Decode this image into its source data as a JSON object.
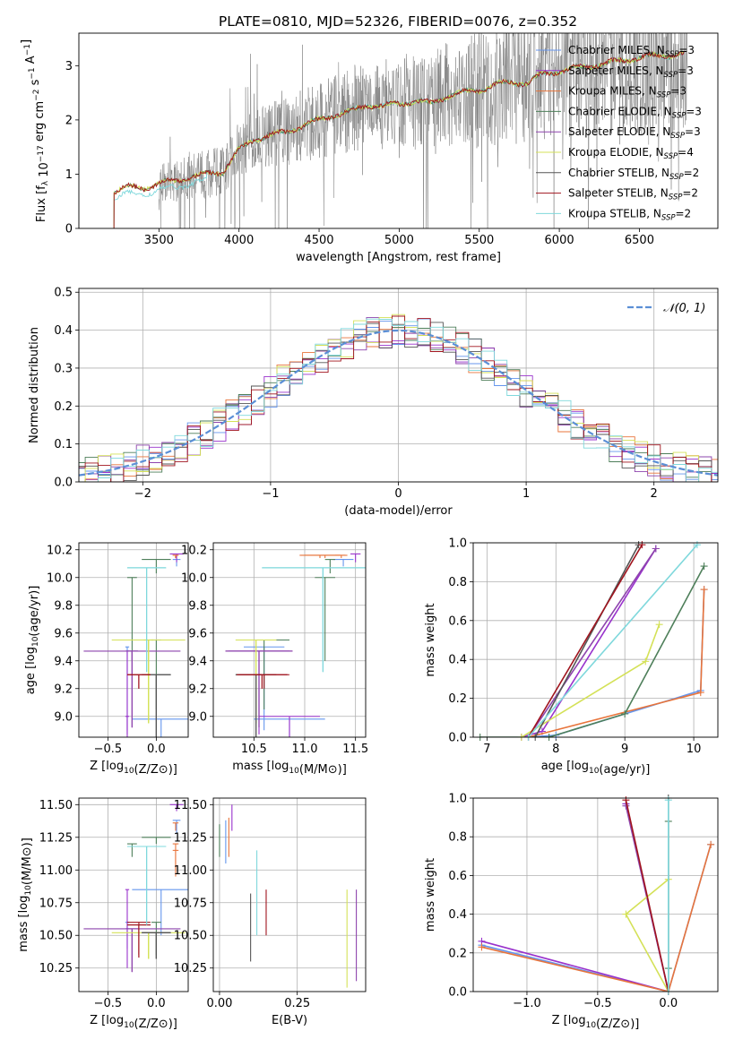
{
  "figure_title": "PLATE=0810, MJD=52326, FIBERID=0076, z=0.352",
  "colors": {
    "chabrier_miles": "#6495ed",
    "salpeter_miles": "#9932cc",
    "kroupa_miles": "#e8743b",
    "chabrier_elodie": "#4e7f5a",
    "salpeter_elodie": "#8e44ad",
    "kroupa_elodie": "#d4e157",
    "chabrier_stelib": "#555555",
    "salpeter_stelib": "#a0141e",
    "kroupa_stelib": "#7fd8dc",
    "normal": "#5b8fd6",
    "grid": "#b0b0b0",
    "observed": "#808080"
  },
  "chart_data": [
    {
      "id": "spectrum",
      "type": "line",
      "xlabel": "wavelength [Angstrom, rest frame]",
      "ylabel": "Flux [f_λ 10^-17 erg cm^-2 s^-1 A^-1]",
      "xlim": [
        3000,
        6990
      ],
      "ylim": [
        0,
        3.6
      ],
      "xticks": [
        3500,
        4000,
        4500,
        5000,
        5500,
        6000,
        6500
      ],
      "yticks": [
        0,
        1,
        2,
        3
      ],
      "legend_position": "top-right",
      "grid": false,
      "legend": [
        {
          "key": "chabrier_miles",
          "label": "Chabrier MILES, N",
          "sub": "SSP",
          "suffix": "=3"
        },
        {
          "key": "salpeter_miles",
          "label": "Salpeter MILES, N",
          "sub": "SSP",
          "suffix": "=3"
        },
        {
          "key": "kroupa_miles",
          "label": "Kroupa MILES, N",
          "sub": "SSP",
          "suffix": "=3"
        },
        {
          "key": "chabrier_elodie",
          "label": "Chabrier ELODIE, N",
          "sub": "SSP",
          "suffix": "=3"
        },
        {
          "key": "salpeter_elodie",
          "label": "Salpeter ELODIE, N",
          "sub": "SSP",
          "suffix": "=3"
        },
        {
          "key": "kroupa_elodie",
          "label": "Kroupa ELODIE, N",
          "sub": "SSP",
          "suffix": "=4"
        },
        {
          "key": "chabrier_stelib",
          "label": "Chabrier STELIB, N",
          "sub": "SSP",
          "suffix": "=2"
        },
        {
          "key": "salpeter_stelib",
          "label": "Salpeter STELIB, N",
          "sub": "SSP",
          "suffix": "=2"
        },
        {
          "key": "kroupa_stelib",
          "label": "Kroupa STELIB, N",
          "sub": "SSP",
          "suffix": "=2"
        }
      ],
      "model_continuum": {
        "x": [
          3220,
          3300,
          3400,
          3500,
          3600,
          3700,
          3800,
          3900,
          4000,
          4100,
          4200,
          4300,
          4400,
          4500,
          4600,
          4700,
          4800,
          4900,
          5000,
          5100,
          5200,
          5300,
          5400,
          5500,
          5600,
          5700,
          5800,
          5900,
          6000,
          6100,
          6200,
          6300,
          6400,
          6500,
          6600,
          6700,
          6800
        ],
        "y": [
          0.68,
          0.76,
          0.75,
          0.82,
          0.88,
          0.95,
          1.0,
          1.05,
          1.45,
          1.65,
          1.72,
          1.78,
          1.9,
          2.0,
          2.1,
          2.15,
          2.28,
          2.25,
          2.3,
          2.35,
          2.3,
          2.45,
          2.5,
          2.55,
          2.65,
          2.7,
          2.68,
          2.85,
          2.9,
          2.95,
          3.0,
          3.05,
          3.1,
          3.15,
          3.18,
          3.2,
          3.22
        ]
      },
      "observed_range": [
        3500,
        6800
      ]
    },
    {
      "id": "residuals",
      "type": "bar",
      "xlabel": "(data-model)/error",
      "ylabel": "Normed distribution",
      "xlim": [
        -2.5,
        2.5
      ],
      "ylim": [
        0,
        0.51
      ],
      "xticks": [
        -2,
        -1,
        0,
        1,
        2
      ],
      "yticks": [
        0.0,
        0.1,
        0.2,
        0.3,
        0.4,
        0.5
      ],
      "grid": true,
      "legend_position": "top-right",
      "curve_label": "𝒩(0, 1)",
      "bin_width": 0.1
    },
    {
      "id": "age_vs_Z",
      "type": "scatter",
      "xlabel": "Z [log10(Z/Z⊙)]",
      "ylabel": "age [log10(age/yr)]",
      "xlim": [
        -0.8,
        0.33
      ],
      "ylim": [
        8.85,
        10.25
      ],
      "xticks": [
        -0.5,
        0.0
      ],
      "yticks": [
        9.0,
        9.2,
        9.4,
        9.6,
        9.8,
        10.0,
        10.2
      ],
      "grid": true
    },
    {
      "id": "age_vs_mass",
      "type": "scatter",
      "xlabel": "mass [log10(M/M⊙)]",
      "xlim": [
        10.1,
        11.6
      ],
      "ylim": [
        8.85,
        10.25
      ],
      "xticks": [
        10.5,
        11.0,
        11.5
      ],
      "yticks": [
        9.0,
        9.2,
        9.4,
        9.6,
        9.8,
        10.0,
        10.2
      ],
      "grid": true
    },
    {
      "id": "massweight_vs_age",
      "type": "line",
      "xlabel": "age [log10(age/yr)]",
      "ylabel": "mass weight",
      "xlim": [
        6.8,
        10.35
      ],
      "ylim": [
        0,
        1.0
      ],
      "xticks": [
        7,
        8,
        9,
        10
      ],
      "yticks": [
        0.0,
        0.2,
        0.4,
        0.6,
        0.8,
        1.0
      ],
      "grid": true
    },
    {
      "id": "mass_vs_Z",
      "type": "scatter",
      "xlabel": "Z [log10(Z/Z⊙)]",
      "ylabel": "mass [log10(M/M⊙)]",
      "xlim": [
        -0.8,
        0.33
      ],
      "ylim": [
        10.07,
        11.55
      ],
      "xticks": [
        -0.5,
        0.0
      ],
      "yticks": [
        10.25,
        10.5,
        10.75,
        11.0,
        11.25,
        11.5
      ],
      "grid": true
    },
    {
      "id": "mass_vs_ebv",
      "type": "scatter",
      "xlabel": "E(B-V)",
      "xlim": [
        -0.02,
        0.47
      ],
      "ylim": [
        10.07,
        11.55
      ],
      "xticks": [
        0.0,
        0.25
      ],
      "yticks": [
        10.25,
        10.5,
        10.75,
        11.0,
        11.25,
        11.5
      ],
      "grid": true
    },
    {
      "id": "massweight_vs_Z",
      "type": "line",
      "xlabel": "Z [log10(Z/Z⊙)]",
      "ylabel": "mass weight",
      "xlim": [
        -1.38,
        0.35
      ],
      "ylim": [
        0,
        1.0
      ],
      "xticks": [
        -1.0,
        -0.5,
        0.0
      ],
      "yticks": [
        0.0,
        0.2,
        0.4,
        0.6,
        0.8,
        1.0
      ],
      "grid": true
    }
  ],
  "models": [
    {
      "key": "chabrier_miles",
      "Z": [
        0.21,
        0.05,
        -0.3
      ],
      "Zerr": [
        0.04,
        0.3,
        0.02
      ],
      "age": [
        10.13,
        8.98,
        9.5
      ],
      "ageerr": [
        0.05,
        1.15,
        0.6
      ],
      "mass": [
        11.38,
        10.85,
        10.6
      ],
      "masserr": [
        0.1,
        0.35,
        0.2
      ],
      "ebv": 0.02,
      "ebv_range": [
        11.05,
        11.38
      ],
      "mw_age": [
        [
          7.6,
          0.0
        ],
        [
          8.0,
          0.01
        ],
        [
          10.1,
          0.24
        ],
        [
          10.15,
          0.76
        ]
      ],
      "mw_Z": [
        [
          -1.32,
          0.24
        ],
        [
          0.0,
          0.0
        ],
        [
          0.3,
          0.76
        ],
        [
          0.0,
          0.0
        ],
        [
          -0.3,
          0.97
        ]
      ]
    },
    {
      "key": "salpeter_miles",
      "Z": [
        0.21,
        -0.3,
        -0.3
      ],
      "Zerr": [
        0.07,
        0.02,
        0.02
      ],
      "age": [
        10.17,
        9.0,
        9.47
      ],
      "ageerr": [
        0.06,
        1.12,
        0.6
      ],
      "mass": [
        11.5,
        10.85,
        10.55
      ],
      "masserr": [
        0.05,
        0.3,
        0.3
      ],
      "ebv": 0.04,
      "ebv_range": [
        11.3,
        11.5
      ],
      "mw_age": [
        [
          7.5,
          0.0
        ],
        [
          7.8,
          0.03
        ],
        [
          9.45,
          0.97
        ]
      ],
      "mw_Z": [
        [
          -1.32,
          0.26
        ],
        [
          0.0,
          0.0
        ],
        [
          -0.3,
          0.97
        ]
      ]
    },
    {
      "key": "kroupa_miles",
      "Z": [
        0.2,
        0.2,
        0.2
      ],
      "Zerr": [
        0.03,
        0.03,
        0.03
      ],
      "age": [
        10.16,
        10.16,
        10.16
      ],
      "ageerr": [
        0.02,
        0.02,
        0.02
      ],
      "mass": [
        11.36,
        11.2,
        11.15
      ],
      "masserr": [
        0.06,
        0.2,
        0.2
      ],
      "ebv": 0.03,
      "ebv_range": [
        11.1,
        11.4
      ],
      "mw_age": [
        [
          7.6,
          0.0
        ],
        [
          10.1,
          0.23
        ],
        [
          10.15,
          0.76
        ]
      ],
      "mw_Z": [
        [
          -1.32,
          0.23
        ],
        [
          0.0,
          0.0
        ],
        [
          0.3,
          0.76
        ]
      ]
    },
    {
      "key": "chabrier_elodie",
      "Z": [
        0.0,
        -0.25,
        0.0
      ],
      "Zerr": [
        0.15,
        0.05,
        0.05
      ],
      "age": [
        10.13,
        10.0,
        9.55
      ],
      "ageerr": [
        0.1,
        0.6,
        0.5
      ],
      "mass": [
        11.25,
        11.2,
        10.6
      ],
      "masserr": [
        0.05,
        0.1,
        0.25
      ],
      "ebv": 0.0,
      "ebv_range": [
        11.1,
        11.35
      ],
      "mw_age": [
        [
          6.9,
          0.0
        ],
        [
          7.9,
          0.0
        ],
        [
          9.0,
          0.12
        ],
        [
          10.15,
          0.88
        ]
      ],
      "mw_Z": [
        [
          0.0,
          0.0
        ],
        [
          0.0,
          0.88
        ],
        [
          0.0,
          0.12
        ]
      ]
    },
    {
      "key": "salpeter_elodie",
      "Z": [
        -0.25,
        -0.25,
        -0.25
      ],
      "Zerr": [
        0.5,
        0.06,
        0.06
      ],
      "age": [
        9.47,
        9.47,
        9.47
      ],
      "ageerr": [
        0.55,
        0.55,
        0.55
      ],
      "mass": [
        10.55,
        10.55,
        10.55
      ],
      "masserr": [
        0.33,
        0.33,
        0.33
      ],
      "ebv": 0.44,
      "ebv_range": [
        10.15,
        10.85
      ],
      "mw_age": [
        [
          7.6,
          0.0
        ],
        [
          9.45,
          0.97
        ]
      ],
      "mw_Z": [
        [
          0.0,
          0.0
        ],
        [
          -0.3,
          0.96
        ]
      ]
    },
    {
      "key": "kroupa_elodie",
      "Z": [
        -0.08,
        -0.08,
        -0.08
      ],
      "Zerr": [
        0.38,
        0.05,
        0.05
      ],
      "age": [
        9.55,
        9.55,
        9.55
      ],
      "ageerr": [
        0.6,
        0.6,
        0.6
      ],
      "mass": [
        10.52,
        10.52,
        10.52
      ],
      "masserr": [
        0.2,
        0.2,
        0.2
      ],
      "ebv": 0.41,
      "ebv_range": [
        10.1,
        10.85
      ],
      "mw_age": [
        [
          7.5,
          0.0
        ],
        [
          9.3,
          0.39
        ],
        [
          9.5,
          0.58
        ]
      ],
      "mw_Z": [
        [
          0.0,
          0.0
        ],
        [
          -0.3,
          0.4
        ],
        [
          0.0,
          0.58
        ]
      ]
    },
    {
      "key": "chabrier_stelib",
      "Z": [
        0.0,
        0.0,
        0.0
      ],
      "Zerr": [
        0.15,
        0.15,
        0.15
      ],
      "age": [
        9.3,
        9.3,
        9.3
      ],
      "ageerr": [
        0.8,
        0.8,
        0.8
      ],
      "mass": [
        10.52,
        10.52,
        10.52
      ],
      "masserr": [
        0.2,
        0.2,
        0.2
      ],
      "ebv": 0.1,
      "ebv_range": [
        10.3,
        10.82
      ],
      "mw_age": [
        [
          7.7,
          0.0
        ],
        [
          9.2,
          0.99
        ]
      ],
      "mw_Z": [
        [
          0.0,
          0.0
        ],
        [
          0.0,
          1.0
        ]
      ]
    },
    {
      "key": "salpeter_stelib",
      "Z": [
        -0.18,
        -0.18,
        -0.18
      ],
      "Zerr": [
        0.12,
        0.12,
        0.12
      ],
      "age": [
        9.3,
        9.3,
        9.3
      ],
      "ageerr": [
        0.1,
        0.1,
        0.1
      ],
      "mass": [
        10.6,
        10.58,
        10.58
      ],
      "masserr": [
        0.25,
        0.25,
        0.25
      ],
      "ebv": 0.15,
      "ebv_range": [
        10.5,
        10.85
      ],
      "mw_age": [
        [
          7.6,
          0.0
        ],
        [
          9.25,
          0.99
        ]
      ],
      "mw_Z": [
        [
          0.0,
          0.0
        ],
        [
          -0.3,
          0.99
        ]
      ]
    },
    {
      "key": "kroupa_stelib",
      "Z": [
        -0.1,
        -0.1,
        -0.1
      ],
      "Zerr": [
        0.2,
        0.2,
        0.2
      ],
      "age": [
        10.07,
        10.07,
        10.07
      ],
      "ageerr": [
        0.75,
        0.75,
        0.75
      ],
      "mass": [
        11.18,
        11.18,
        11.18
      ],
      "masserr": [
        0.6,
        0.6,
        0.6
      ],
      "ebv": 0.12,
      "ebv_range": [
        10.5,
        11.15
      ],
      "mw_age": [
        [
          7.6,
          0.0
        ],
        [
          10.05,
          0.99
        ]
      ],
      "mw_Z": [
        [
          0.0,
          0.0
        ],
        [
          0.0,
          0.99
        ]
      ]
    }
  ]
}
